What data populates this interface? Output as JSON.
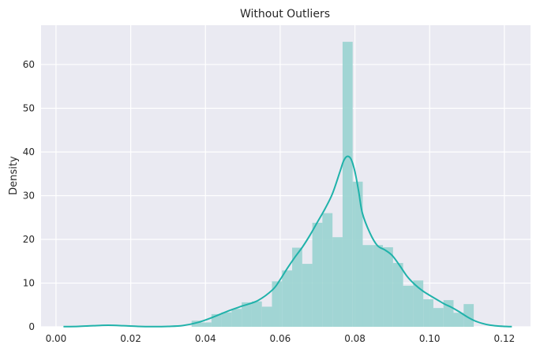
{
  "chart_data": {
    "type": "bar",
    "subtype": "histogram-with-kde",
    "title": "Without Outliers",
    "xlabel": "",
    "ylabel": "Density",
    "xlim": [
      -0.004,
      0.127
    ],
    "ylim": [
      0,
      69
    ],
    "grid": true,
    "x_ticks": [
      0.0,
      0.02,
      0.04,
      0.06,
      0.08,
      0.1,
      0.12
    ],
    "x_tick_labels": [
      "0.00",
      "0.02",
      "0.04",
      "0.06",
      "0.08",
      "0.10",
      "0.12"
    ],
    "y_ticks": [
      0,
      10,
      20,
      30,
      40,
      50,
      60
    ],
    "y_tick_labels": [
      "0",
      "10",
      "20",
      "30",
      "40",
      "50",
      "60"
    ],
    "bar_color": "#9dd4d2",
    "line_color": "#20b2aa",
    "background_color": "#eaeaf2",
    "bins": [
      [
        0.0363,
        0.0389,
        1.4
      ],
      [
        0.0389,
        0.0416,
        1.0
      ],
      [
        0.0416,
        0.0443,
        2.9
      ],
      [
        0.0443,
        0.047,
        3.3
      ],
      [
        0.047,
        0.0497,
        4.1
      ],
      [
        0.0497,
        0.0524,
        5.6
      ],
      [
        0.0524,
        0.0551,
        5.8
      ],
      [
        0.0551,
        0.0578,
        4.6
      ],
      [
        0.0578,
        0.0605,
        10.4
      ],
      [
        0.0605,
        0.0632,
        12.9
      ],
      [
        0.0632,
        0.0659,
        18.1
      ],
      [
        0.0659,
        0.0686,
        14.4
      ],
      [
        0.0686,
        0.0713,
        23.8
      ],
      [
        0.0713,
        0.074,
        26.0
      ],
      [
        0.074,
        0.0767,
        20.5
      ],
      [
        0.0767,
        0.0794,
        65.2
      ],
      [
        0.0794,
        0.0821,
        33.2
      ],
      [
        0.0821,
        0.0848,
        18.7
      ],
      [
        0.0848,
        0.0875,
        18.7
      ],
      [
        0.0875,
        0.0902,
        18.2
      ],
      [
        0.0902,
        0.0929,
        14.6
      ],
      [
        0.0929,
        0.0956,
        9.4
      ],
      [
        0.0956,
        0.0983,
        10.6
      ],
      [
        0.0983,
        0.101,
        6.3
      ],
      [
        0.101,
        0.1037,
        4.3
      ],
      [
        0.1037,
        0.1064,
        6.1
      ],
      [
        0.1064,
        0.1091,
        3.2
      ],
      [
        0.1091,
        0.1118,
        5.2
      ]
    ],
    "kde": {
      "x": [
        0.002,
        0.006,
        0.01,
        0.014,
        0.018,
        0.022,
        0.026,
        0.03,
        0.034,
        0.038,
        0.042,
        0.046,
        0.05,
        0.054,
        0.058,
        0.06,
        0.062,
        0.064,
        0.066,
        0.068,
        0.07,
        0.072,
        0.074,
        0.076,
        0.077,
        0.078,
        0.079,
        0.08,
        0.081,
        0.082,
        0.084,
        0.086,
        0.088,
        0.09,
        0.092,
        0.094,
        0.096,
        0.098,
        0.1,
        0.102,
        0.104,
        0.106,
        0.108,
        0.11,
        0.112,
        0.114,
        0.116,
        0.118,
        0.12,
        0.122
      ],
      "y": [
        0.05,
        0.1,
        0.25,
        0.35,
        0.25,
        0.1,
        0.05,
        0.1,
        0.3,
        1.0,
        2.2,
        3.6,
        4.8,
        6.0,
        8.5,
        10.8,
        13.5,
        16.0,
        18.3,
        21.0,
        24.0,
        27.0,
        30.5,
        35.5,
        38.0,
        39.0,
        38.3,
        35.5,
        31.0,
        26.0,
        21.5,
        18.6,
        17.6,
        16.3,
        14.0,
        11.5,
        9.7,
        8.3,
        7.2,
        6.2,
        5.2,
        4.4,
        3.4,
        2.3,
        1.4,
        0.8,
        0.4,
        0.2,
        0.1,
        0.05
      ]
    }
  }
}
